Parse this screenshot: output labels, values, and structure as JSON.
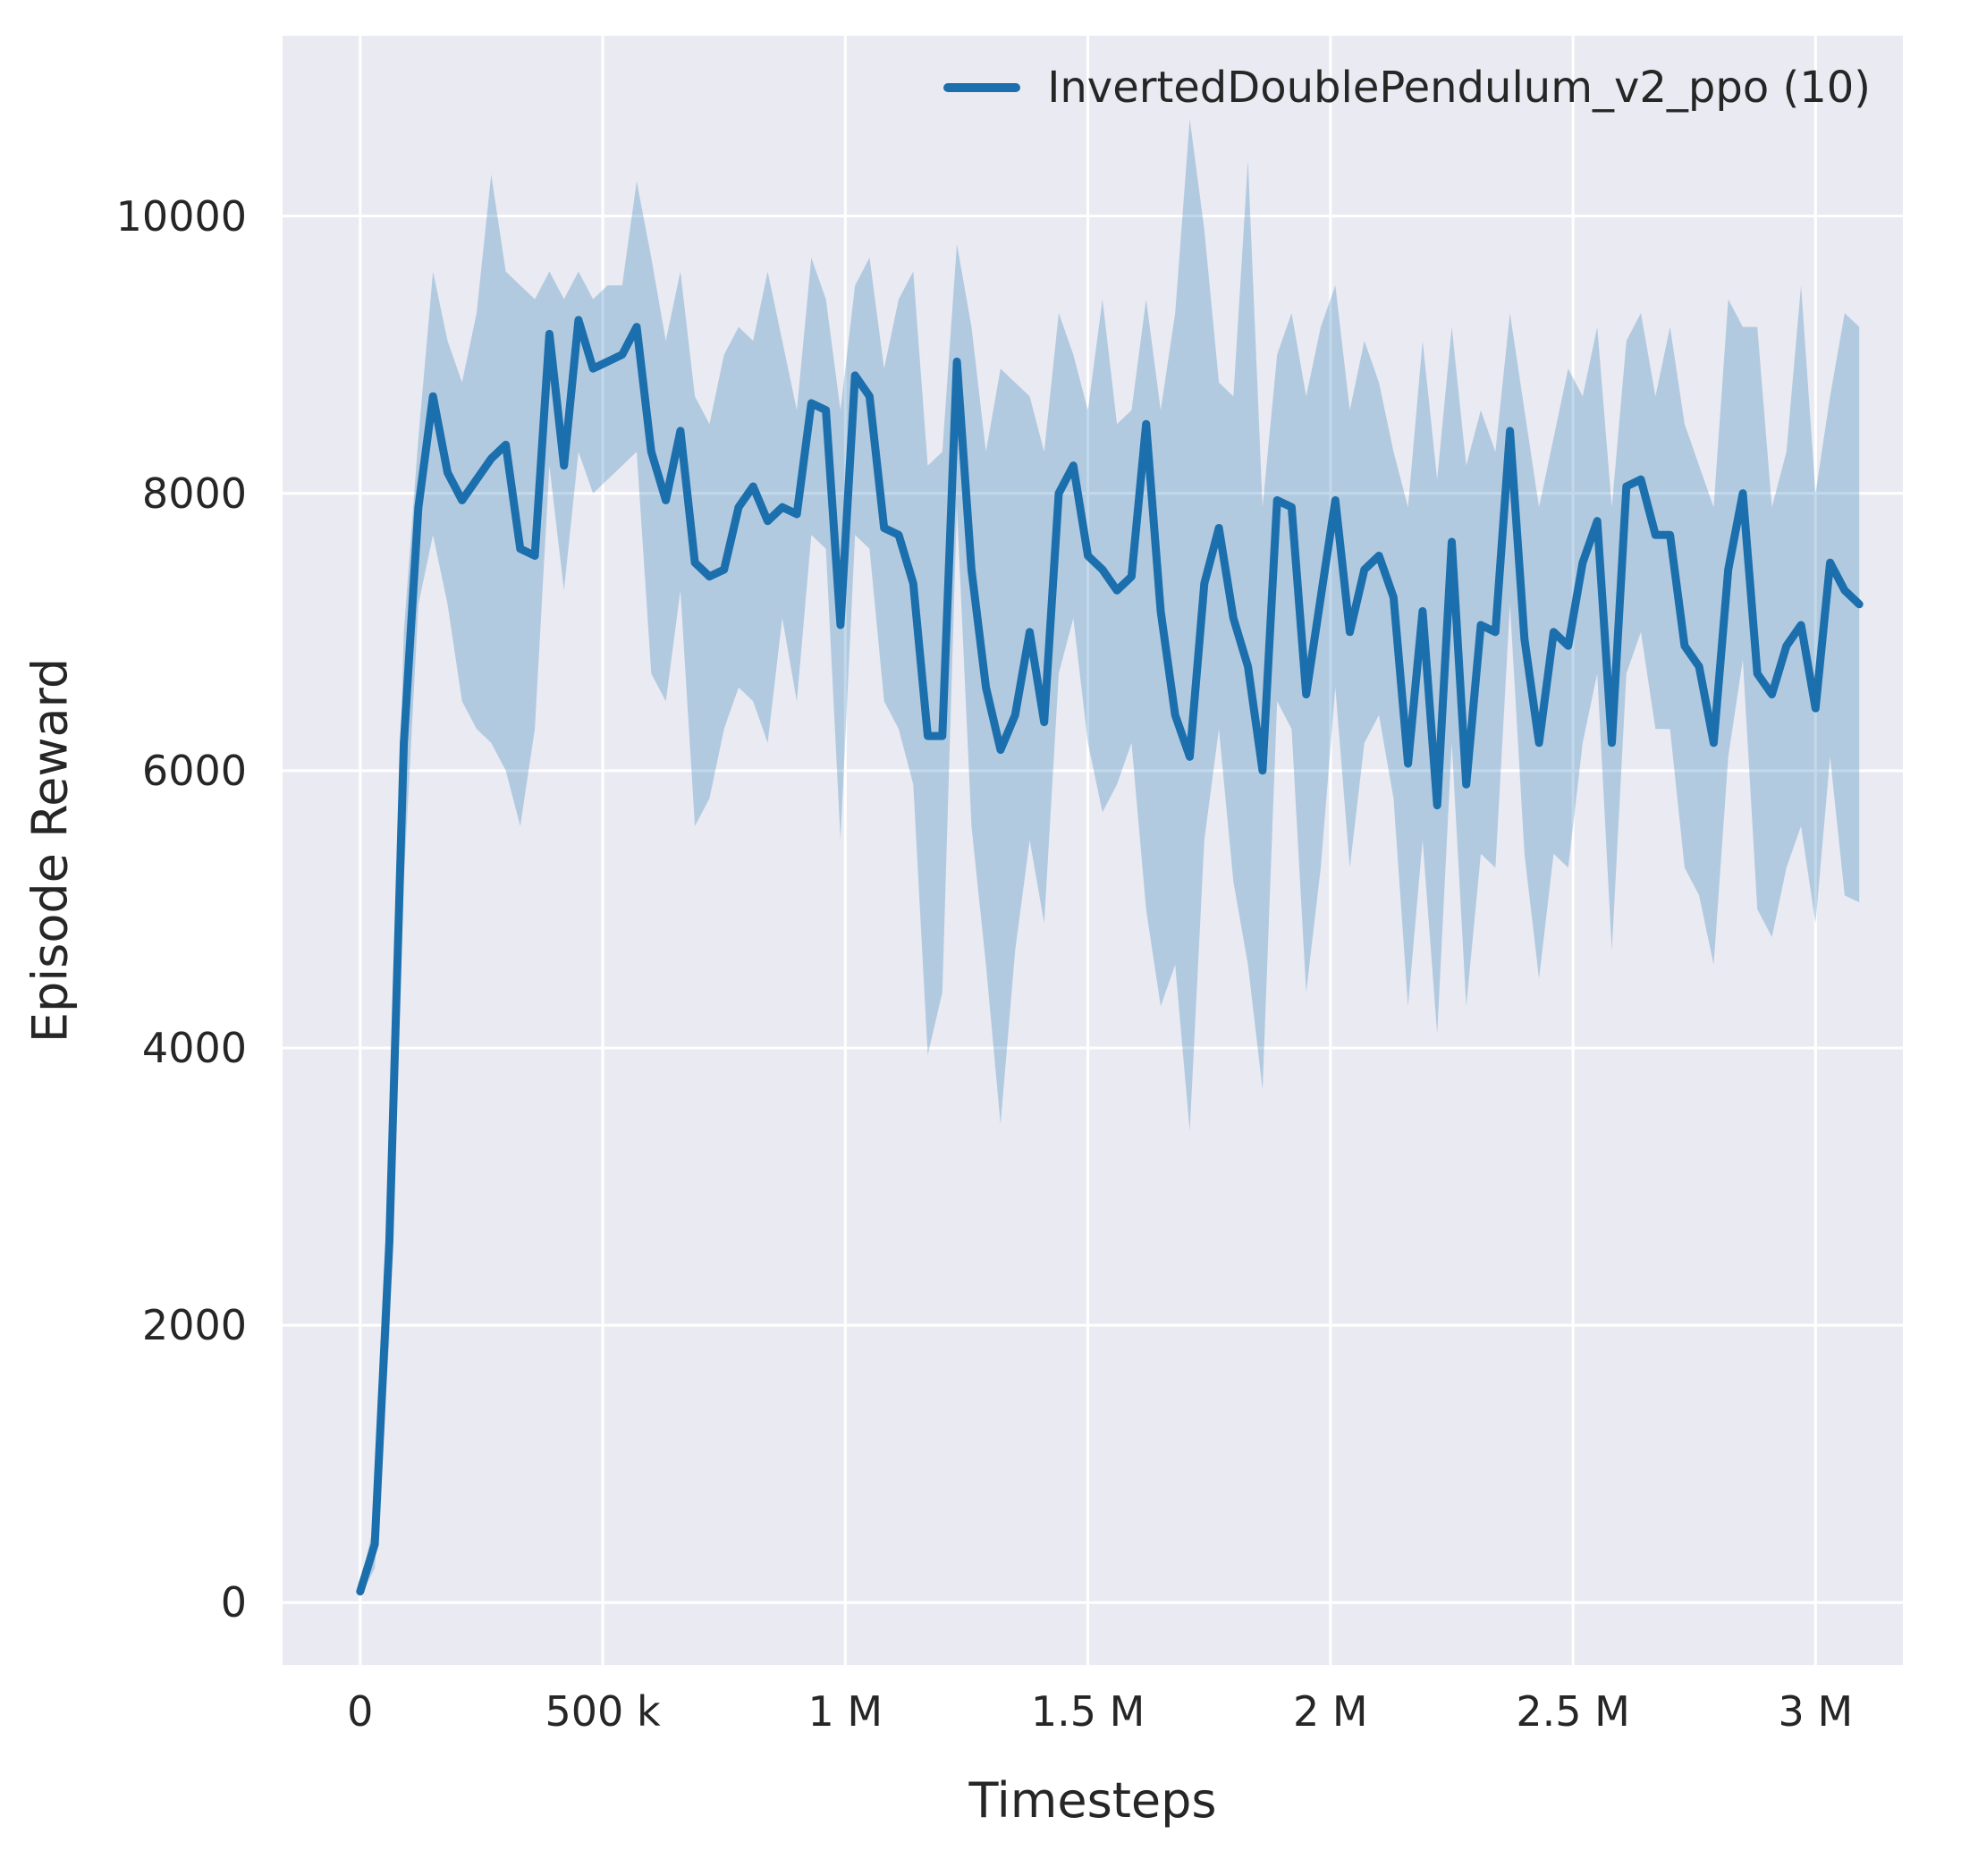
{
  "figure": {
    "xlabel": "Timesteps",
    "ylabel": "Episode Reward"
  },
  "chart_data": {
    "type": "line",
    "title": "",
    "xlabel": "Timesteps",
    "ylabel": "Episode Reward",
    "legend": [
      "InvertedDoublePendulum_v2_ppo (10)"
    ],
    "legend_position": "upper right",
    "grid": true,
    "style": "seaborn-darkgrid",
    "xlim": [
      -160000,
      3180000
    ],
    "ylim": [
      -450,
      11300
    ],
    "x_ticks": [
      0,
      500000,
      1000000,
      1500000,
      2000000,
      2500000,
      3000000
    ],
    "x_tick_labels": [
      "0",
      "500 k",
      "1 M",
      "1.5 M",
      "2 M",
      "2.5 M",
      "3 M"
    ],
    "y_ticks": [
      0,
      2000,
      4000,
      6000,
      8000,
      10000
    ],
    "y_tick_labels": [
      "0",
      "2000",
      "4000",
      "6000",
      "8000",
      "10000"
    ],
    "colors": {
      "line": "#1c6fad",
      "band": "rgba(31,119,180,0.28)",
      "plot_bg": "#eaeaf2",
      "grid": "#ffffff",
      "text": "#262626"
    },
    "series": [
      {
        "name": "InvertedDoublePendulum_v2_ppo (10)",
        "x": [
          0,
          30000,
          60000,
          90000,
          120000,
          150000,
          180000,
          210000,
          240000,
          270000,
          300000,
          330000,
          360000,
          390000,
          420000,
          450000,
          480000,
          510000,
          540000,
          570000,
          600000,
          630000,
          660000,
          690000,
          720000,
          750000,
          780000,
          810000,
          840000,
          870000,
          900000,
          930000,
          960000,
          990000,
          1020000,
          1050000,
          1080000,
          1110000,
          1140000,
          1170000,
          1200000,
          1230000,
          1260000,
          1290000,
          1320000,
          1350000,
          1380000,
          1410000,
          1440000,
          1470000,
          1500000,
          1530000,
          1560000,
          1590000,
          1620000,
          1650000,
          1680000,
          1710000,
          1740000,
          1770000,
          1800000,
          1830000,
          1860000,
          1890000,
          1920000,
          1950000,
          1980000,
          2010000,
          2040000,
          2070000,
          2100000,
          2130000,
          2160000,
          2190000,
          2220000,
          2250000,
          2280000,
          2310000,
          2340000,
          2370000,
          2400000,
          2430000,
          2460000,
          2490000,
          2520000,
          2550000,
          2580000,
          2610000,
          2640000,
          2670000,
          2700000,
          2730000,
          2760000,
          2790000,
          2820000,
          2850000,
          2880000,
          2910000,
          2940000,
          2970000,
          3000000,
          3030000,
          3060000,
          3090000
        ],
        "mean": [
          80,
          420,
          2600,
          6200,
          7900,
          8700,
          8150,
          7950,
          8100,
          8250,
          8350,
          7600,
          7550,
          9150,
          8200,
          9250,
          8900,
          8950,
          9000,
          9200,
          8300,
          7950,
          8450,
          7500,
          7400,
          7450,
          7900,
          8050,
          7800,
          7900,
          7850,
          8650,
          8600,
          7050,
          8850,
          8700,
          7750,
          7700,
          7350,
          6250,
          6250,
          8950,
          7450,
          6600,
          6150,
          6400,
          7000,
          6350,
          8000,
          8200,
          7550,
          7450,
          7300,
          7400,
          8500,
          7150,
          6400,
          6100,
          7350,
          7750,
          7100,
          6750,
          6000,
          7950,
          7900,
          6550,
          7250,
          7950,
          7000,
          7450,
          7550,
          7250,
          6050,
          7150,
          5750,
          7650,
          5900,
          7050,
          7000,
          8450,
          6950,
          6200,
          7000,
          6900,
          7500,
          7800,
          6200,
          8050,
          8100,
          7700,
          7700,
          6900,
          6750,
          6200,
          7450,
          8000,
          6700,
          6550,
          6900,
          7050,
          6450,
          7500,
          7300,
          7200
        ],
        "band_upper": [
          120,
          600,
          3200,
          7000,
          8400,
          9600,
          9100,
          8800,
          9300,
          10300,
          9600,
          9500,
          9400,
          9600,
          9400,
          9600,
          9400,
          9500,
          9500,
          10250,
          9700,
          9100,
          9600,
          8700,
          8500,
          9000,
          9200,
          9100,
          9600,
          9100,
          8600,
          9700,
          9400,
          8600,
          9500,
          9700,
          8900,
          9400,
          9600,
          8200,
          8300,
          9800,
          9200,
          8300,
          8900,
          8800,
          8700,
          8300,
          9300,
          9000,
          8600,
          9400,
          8500,
          8600,
          9400,
          8600,
          9300,
          10700,
          9900,
          8800,
          8700,
          10400,
          7900,
          9000,
          9300,
          8700,
          9200,
          9500,
          8600,
          9100,
          8800,
          8300,
          7900,
          9100,
          8100,
          9200,
          8200,
          8600,
          8300,
          9300,
          8600,
          7900,
          8400,
          8900,
          8700,
          9200,
          7900,
          9100,
          9300,
          8700,
          9200,
          8500,
          8200,
          7900,
          9400,
          9200,
          9200,
          7900,
          8300,
          9500,
          8000,
          8700,
          9300,
          9200
        ],
        "band_lower": [
          40,
          250,
          1900,
          5200,
          7200,
          7700,
          7200,
          6500,
          6300,
          6200,
          6000,
          5600,
          6300,
          8200,
          7300,
          8300,
          8000,
          8100,
          8200,
          8300,
          6700,
          6500,
          7300,
          5600,
          5800,
          6300,
          6600,
          6500,
          6200,
          7100,
          6500,
          7700,
          7600,
          5500,
          7700,
          7600,
          6500,
          6300,
          5900,
          3950,
          4400,
          7900,
          5600,
          4600,
          3450,
          4700,
          5500,
          4900,
          6700,
          7100,
          6200,
          5700,
          5900,
          6200,
          5000,
          4300,
          4600,
          3400,
          5500,
          6300,
          5200,
          4600,
          3700,
          6500,
          6300,
          4400,
          5300,
          6600,
          5300,
          6200,
          6400,
          5800,
          4300,
          5500,
          4100,
          6200,
          4300,
          5400,
          5300,
          7200,
          5400,
          4500,
          5400,
          5300,
          6200,
          6700,
          4700,
          6700,
          7000,
          6300,
          6300,
          5300,
          5100,
          4600,
          6100,
          6800,
          5000,
          4800,
          5300,
          5600,
          4900,
          6100,
          5100,
          5050
        ]
      }
    ]
  }
}
